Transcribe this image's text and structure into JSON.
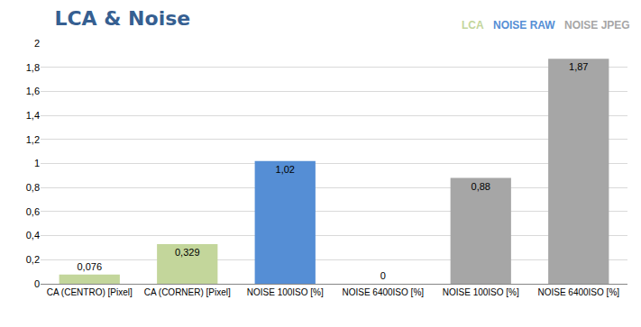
{
  "chart_data": {
    "type": "bar",
    "title": "LCA & Noise",
    "categories": [
      "CA (CENTRO) [Pixel]",
      "CA (CORNER) [Pixel]",
      "NOISE 100ISO [%]",
      "NOISE 6400ISO [%]",
      "NOISE 100ISO [%]",
      "NOISE 6400ISO [%]"
    ],
    "series": [
      {
        "name": "LCA",
        "color": "#c3d69b",
        "values": [
          0.076,
          0.329,
          null,
          null,
          null,
          null
        ],
        "value_labels": [
          "0,076",
          "0,329",
          null,
          null,
          null,
          null
        ]
      },
      {
        "name": "NOISE RAW",
        "color": "#558ed5",
        "values": [
          null,
          null,
          1.02,
          0,
          null,
          null
        ],
        "value_labels": [
          null,
          null,
          "1,02",
          "0",
          null,
          null
        ]
      },
      {
        "name": "NOISE JPEG",
        "color": "#a6a6a6",
        "values": [
          null,
          null,
          null,
          null,
          0.88,
          1.87
        ],
        "value_labels": [
          null,
          null,
          null,
          null,
          "0,88",
          "1,87"
        ]
      }
    ],
    "ylim": [
      0,
      2
    ],
    "yticks": [
      0,
      {
        "value": 0.2,
        "label": "0,2"
      },
      {
        "value": 0.4,
        "label": "0,4"
      },
      {
        "value": 0.6,
        "label": "0,6"
      },
      {
        "value": 0.8,
        "label": "0,8"
      },
      1,
      {
        "value": 1.2,
        "label": "1,2"
      },
      {
        "value": 1.4,
        "label": "1,4"
      },
      {
        "value": 1.6,
        "label": "1,6"
      },
      {
        "value": 1.8,
        "label": "1,8"
      },
      2
    ],
    "grid": true,
    "legend": "top right",
    "data_labels": true
  }
}
